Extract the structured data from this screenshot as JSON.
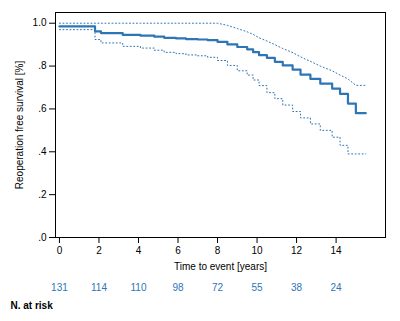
{
  "chart_data": {
    "type": "line",
    "xlabel": "Time to event [years]",
    "ylabel": "Reoperation free survival [%]",
    "xlim": [
      -0.2,
      16.5
    ],
    "ylim": [
      0.0,
      1.05
    ],
    "xticks": [
      0,
      2,
      4,
      6,
      8,
      10,
      12,
      14
    ],
    "yticks": [
      {
        "value": 0.0,
        "label": ".0"
      },
      {
        "value": 0.2,
        "label": ".2"
      },
      {
        "value": 0.4,
        "label": ".4"
      },
      {
        "value": 0.6,
        "label": ".6"
      },
      {
        "value": 0.8,
        "label": ".8"
      },
      {
        "value": 1.0,
        "label": "1.0"
      }
    ],
    "color": "#2E75B6",
    "grid": false,
    "series": [
      {
        "line_style": "dotted",
        "x": [
          0,
          1.8,
          1.8,
          2.1,
          2.1,
          3.2,
          3.2,
          4.1,
          4.1,
          4.8,
          4.8,
          5.3,
          5.3,
          5.9,
          5.9,
          6.4,
          6.4,
          7.0,
          7.0,
          7.5,
          7.5,
          8.0,
          8.0,
          8.5,
          8.5,
          9.0,
          9.0,
          9.5,
          9.5,
          9.8,
          9.8,
          10.1,
          10.1,
          10.5,
          10.5,
          10.9,
          10.9,
          11.3,
          11.3,
          11.8,
          11.8,
          12.2,
          12.2,
          12.7,
          12.7,
          13.2,
          13.2,
          13.8,
          13.8,
          14.2,
          14.2,
          14.6,
          14.6,
          15.0,
          15.0,
          15.5
        ],
        "values": [
          1.0,
          1.0,
          1.0,
          1.0,
          1.0,
          1.0,
          1.0,
          1.0,
          1.0,
          1.0,
          1.0,
          1.0,
          1.0,
          1.0,
          1.0,
          1.0,
          1.0,
          1.0,
          1.0,
          1.0,
          1.0,
          1.0,
          1.0,
          0.99,
          0.99,
          0.975,
          0.975,
          0.96,
          0.96,
          0.948,
          0.948,
          0.932,
          0.932,
          0.917,
          0.917,
          0.9,
          0.9,
          0.882,
          0.882,
          0.863,
          0.863,
          0.843,
          0.843,
          0.822,
          0.822,
          0.8,
          0.8,
          0.778,
          0.778,
          0.758,
          0.758,
          0.74,
          0.74,
          0.71,
          0.71,
          0.71
        ]
      },
      {
        "line_style": "dotted",
        "x": [
          0,
          1.8,
          1.8,
          2.1,
          2.1,
          3.2,
          3.2,
          4.1,
          4.1,
          4.8,
          4.8,
          5.3,
          5.3,
          5.9,
          5.9,
          6.4,
          6.4,
          7.0,
          7.0,
          7.5,
          7.5,
          8.0,
          8.0,
          8.5,
          8.5,
          9.0,
          9.0,
          9.5,
          9.5,
          9.8,
          9.8,
          10.1,
          10.1,
          10.5,
          10.5,
          10.9,
          10.9,
          11.3,
          11.3,
          11.8,
          11.8,
          12.2,
          12.2,
          12.7,
          12.7,
          13.2,
          13.2,
          13.8,
          13.8,
          14.2,
          14.2,
          14.6,
          14.6,
          15.0,
          15.0,
          15.5
        ],
        "values": [
          0.97,
          0.97,
          0.924,
          0.924,
          0.908,
          0.908,
          0.892,
          0.892,
          0.884,
          0.884,
          0.874,
          0.874,
          0.864,
          0.864,
          0.858,
          0.858,
          0.852,
          0.852,
          0.848,
          0.848,
          0.841,
          0.841,
          0.826,
          0.826,
          0.803,
          0.803,
          0.778,
          0.778,
          0.758,
          0.758,
          0.735,
          0.735,
          0.709,
          0.709,
          0.676,
          0.676,
          0.648,
          0.648,
          0.618,
          0.618,
          0.588,
          0.588,
          0.558,
          0.558,
          0.53,
          0.53,
          0.5,
          0.5,
          0.468,
          0.468,
          0.43,
          0.43,
          0.39,
          0.39,
          0.39,
          0.39
        ]
      },
      {
        "line_style": "solid",
        "x": [
          0,
          1.8,
          1.8,
          2.1,
          2.1,
          3.2,
          3.2,
          4.1,
          4.1,
          4.8,
          4.8,
          5.3,
          5.3,
          5.9,
          5.9,
          6.4,
          6.4,
          7.0,
          7.0,
          7.5,
          7.5,
          8.0,
          8.0,
          8.5,
          8.5,
          9.0,
          9.0,
          9.5,
          9.5,
          9.8,
          9.8,
          10.1,
          10.1,
          10.5,
          10.5,
          10.9,
          10.9,
          11.3,
          11.3,
          11.8,
          11.8,
          12.2,
          12.2,
          12.7,
          12.7,
          13.2,
          13.2,
          13.8,
          13.8,
          14.2,
          14.2,
          14.6,
          14.6,
          15.0,
          15.0,
          15.5
        ],
        "values": [
          0.985,
          0.985,
          0.962,
          0.962,
          0.954,
          0.954,
          0.946,
          0.946,
          0.942,
          0.942,
          0.937,
          0.937,
          0.932,
          0.932,
          0.929,
          0.929,
          0.926,
          0.926,
          0.924,
          0.924,
          0.921,
          0.921,
          0.913,
          0.913,
          0.901,
          0.901,
          0.889,
          0.889,
          0.878,
          0.878,
          0.865,
          0.865,
          0.851,
          0.851,
          0.838,
          0.838,
          0.82,
          0.82,
          0.803,
          0.803,
          0.783,
          0.783,
          0.76,
          0.76,
          0.74,
          0.74,
          0.718,
          0.718,
          0.695,
          0.695,
          0.67,
          0.67,
          0.625,
          0.625,
          0.58,
          0.58
        ]
      }
    ],
    "n_at_risk": {
      "label": "N. at risk",
      "x": [
        0,
        2,
        4,
        6,
        8,
        10,
        12,
        14
      ],
      "values": [
        131,
        114,
        110,
        98,
        72,
        55,
        38,
        24
      ]
    }
  }
}
